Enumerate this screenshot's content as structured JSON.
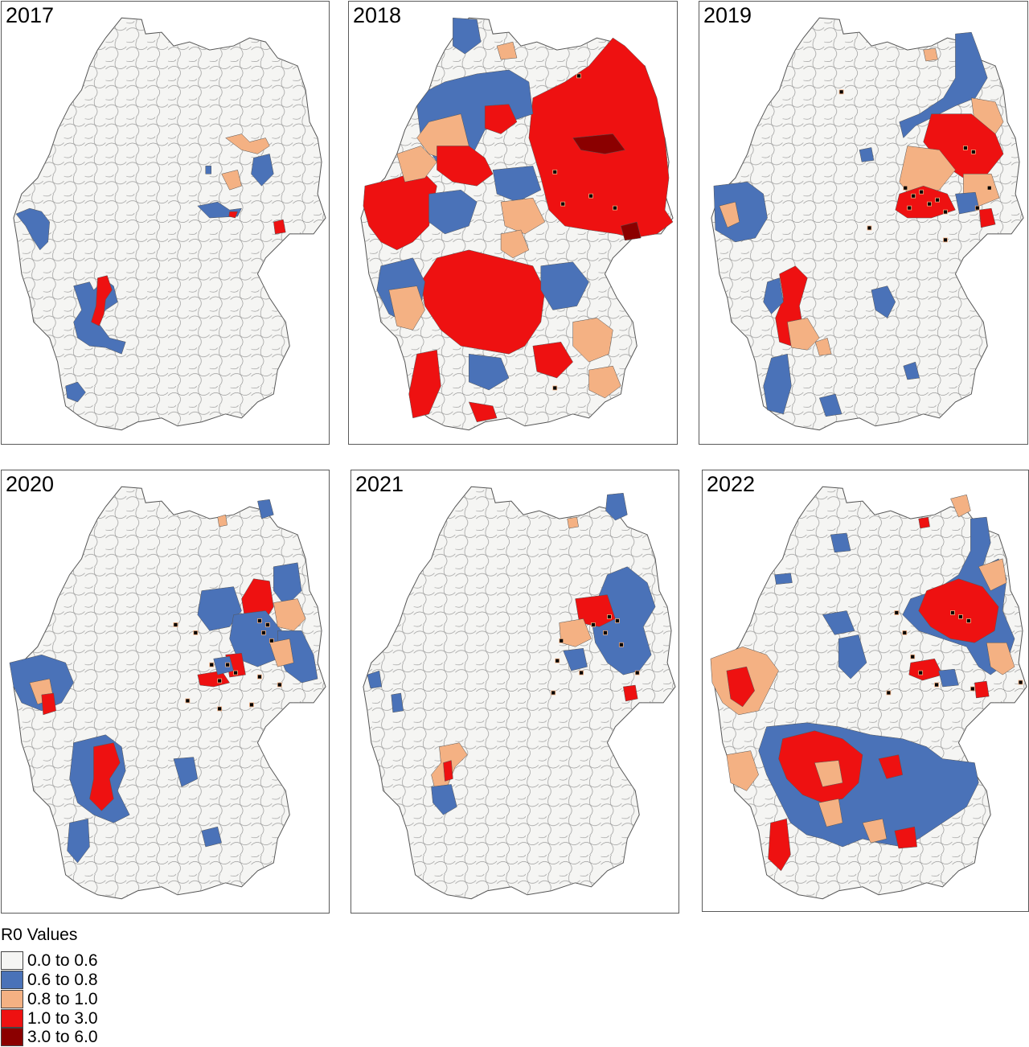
{
  "panels": [
    {
      "year": "2017"
    },
    {
      "year": "2018"
    },
    {
      "year": "2019"
    },
    {
      "year": "2020"
    },
    {
      "year": "2021"
    },
    {
      "year": "2022"
    }
  ],
  "legend": {
    "title": "R0 Values",
    "items": [
      {
        "label": "0.0 to 0.6",
        "color": "#f5f5f3"
      },
      {
        "label": "0.6 to 0.8",
        "color": "#4a72b8"
      },
      {
        "label": "0.8 to 1.0",
        "color": "#f4b183"
      },
      {
        "label": "1.0 to 3.0",
        "color": "#ee1111"
      },
      {
        "label": "3.0 to 6.0",
        "color": "#8b0000"
      }
    ]
  },
  "colors": {
    "base_fill": "#f5f5f3",
    "border": "#6f6f6f",
    "outbreak_marker": "#000000",
    "outbreak_marker_edge": "#f4b183"
  }
}
